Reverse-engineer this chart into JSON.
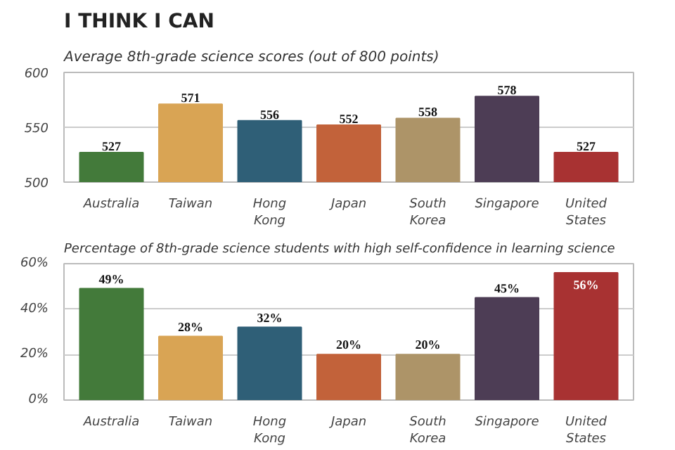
{
  "chart_data": [
    {
      "type": "bar",
      "title": "I THINK I CAN",
      "subtitle": "Average 8th-grade science scores (out of 800 points)",
      "categories": [
        "Australia",
        "Taiwan",
        "Hong Kong",
        "Japan",
        "South Korea",
        "Singapore",
        "United States"
      ],
      "values": [
        527,
        571,
        556,
        552,
        558,
        578,
        527
      ],
      "colors": [
        "#437a3a",
        "#d9a454",
        "#2f5f77",
        "#c2623a",
        "#ad9468",
        "#4d3d55",
        "#a83232"
      ],
      "ylim": [
        500,
        600
      ],
      "yticks": [
        500,
        550,
        600
      ],
      "grid": "y",
      "data_labels": true
    },
    {
      "type": "bar",
      "title": "Percentage of 8th-grade science students with high self-confidence in learning science",
      "categories": [
        "Australia",
        "Taiwan",
        "Hong Kong",
        "Japan",
        "South Korea",
        "Singapore",
        "United States"
      ],
      "values": [
        49,
        28,
        32,
        20,
        20,
        45,
        56
      ],
      "value_labels": [
        "49%",
        "28%",
        "32%",
        "20%",
        "20%",
        "45%",
        "56%"
      ],
      "colors": [
        "#437a3a",
        "#d9a454",
        "#2f5f77",
        "#c2623a",
        "#ad9468",
        "#4d3d55",
        "#a83232"
      ],
      "ylim": [
        0,
        60
      ],
      "yticks": [
        {
          "value": 0,
          "label": "0%"
        },
        {
          "value": 20,
          "label": "20%"
        },
        {
          "value": 40,
          "label": "40%"
        },
        {
          "value": 60,
          "label": "60%"
        }
      ],
      "grid": "y"
    }
  ]
}
